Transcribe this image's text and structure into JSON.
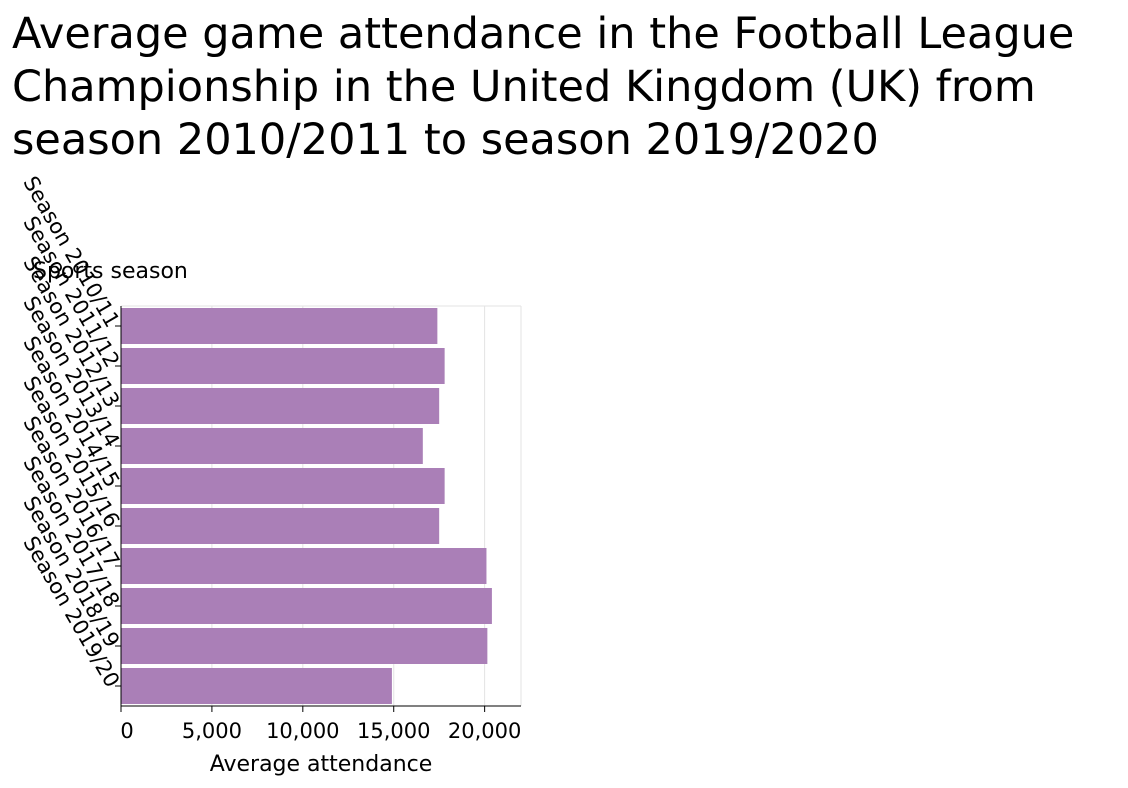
{
  "chart_data": {
    "type": "bar",
    "orientation": "horizontal",
    "title": "Average game attendance in the Football League Championship in the United Kingdom (UK) from season 2010/2011 to season 2019/2020",
    "xlabel": "Average attendance",
    "ylabel": "Sports season",
    "categories": [
      "Season 2010/11",
      "Season 2011/12",
      "Season 2012/13",
      "Season 2013/14",
      "Season 2014/15",
      "Season 2015/16",
      "Season 2016/17",
      "Season 2017/18",
      "Season 2018/19",
      "Season 2019/20"
    ],
    "values": [
      17400,
      17800,
      17500,
      16600,
      17800,
      17500,
      20100,
      20400,
      20150,
      14900
    ],
    "xlim": [
      0,
      22000
    ],
    "xticks": [
      0,
      5000,
      10000,
      15000,
      20000
    ],
    "xtick_labels": [
      "0",
      "5,000",
      "10,000",
      "15,000",
      "20,000"
    ],
    "grid": "vertical",
    "bar_color": "#aa7fb7"
  }
}
